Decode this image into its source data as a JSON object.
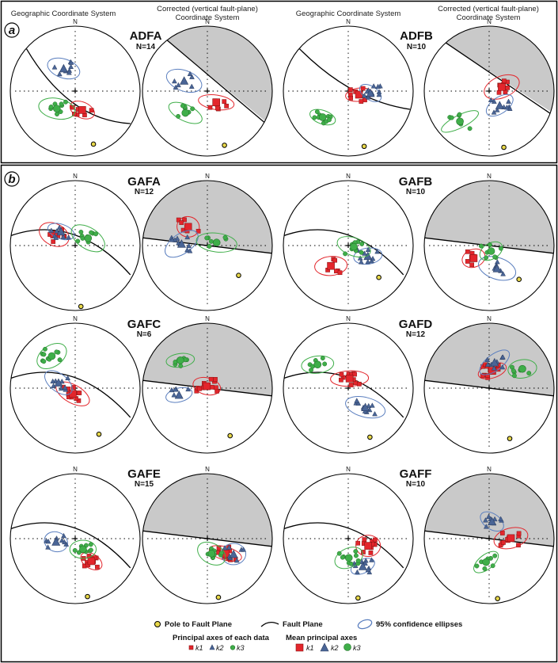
{
  "panels": [
    {
      "id": "a",
      "label": "a"
    },
    {
      "id": "b",
      "label": "b"
    }
  ],
  "column_headers": {
    "geographic": "Geographic Coordinate System",
    "corrected_line1": "Corrected (vertical fault-plane)",
    "corrected_line2": "Coordinate System"
  },
  "north_label": "N",
  "sites": [
    {
      "name": "ADFA",
      "n": "N=14"
    },
    {
      "name": "ADFB",
      "n": "N=10"
    },
    {
      "name": "GAFA",
      "n": "N=12"
    },
    {
      "name": "GAFB",
      "n": "N=10"
    },
    {
      "name": "GAFC",
      "n": "N=6"
    },
    {
      "name": "GAFD",
      "n": "N=12"
    },
    {
      "name": "GAFE",
      "n": "N=15"
    },
    {
      "name": "GAFF",
      "n": "N=10"
    }
  ],
  "legend": {
    "pole": "Pole to Fault Plane",
    "fault": "Fault Plane",
    "ellipse": "95% confidence ellipses",
    "principal_title": "Principal axes of each data",
    "mean_title": "Mean principal axes",
    "k1": "k1",
    "k2": "k2",
    "k3": "k3"
  },
  "colors": {
    "k1": "#e3262c",
    "k2": "#4a6596",
    "k3": "#3fae49",
    "ellipse_k2": "#5b7fbf",
    "shade": "#c9c9c9",
    "pole": "#e8d84a"
  }
}
